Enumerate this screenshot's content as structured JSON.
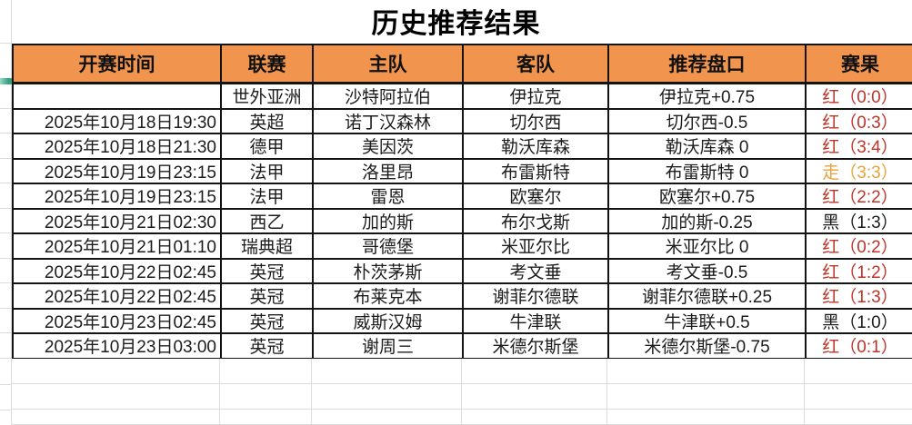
{
  "title": "历史推荐结果",
  "table": {
    "columns": [
      {
        "key": "time",
        "label": "开赛时间"
      },
      {
        "key": "league",
        "label": "联赛"
      },
      {
        "key": "home",
        "label": "主队"
      },
      {
        "key": "away",
        "label": "客队"
      },
      {
        "key": "handicap",
        "label": "推荐盘口"
      },
      {
        "key": "result",
        "label": "赛果"
      }
    ],
    "rows": [
      {
        "time": "",
        "league": "世外亚洲",
        "home": "沙特阿拉伯",
        "away": "伊拉克",
        "handicap": "伊拉克+0.75",
        "result": "红（0:0）",
        "result_type": "red"
      },
      {
        "time": "2025年10月18日19:30",
        "league": "英超",
        "home": "诺丁汉森林",
        "away": "切尔西",
        "handicap": "切尔西-0.5",
        "result": "红（0:3）",
        "result_type": "red"
      },
      {
        "time": "2025年10月18日21:30",
        "league": "德甲",
        "home": "美因茨",
        "away": "勒沃库森",
        "handicap": "勒沃库森 0",
        "result": "红（3:4）",
        "result_type": "red"
      },
      {
        "time": "2025年10月19日23:15",
        "league": "法甲",
        "home": "洛里昂",
        "away": "布雷斯特",
        "handicap": "布雷斯特 0",
        "result": "走（3:3）",
        "result_type": "push"
      },
      {
        "time": "2025年10月19日23:15",
        "league": "法甲",
        "home": "雷恩",
        "away": "欧塞尔",
        "handicap": "欧塞尔+0.75",
        "result": "红（2:2）",
        "result_type": "red"
      },
      {
        "time": "2025年10月21日02:30",
        "league": "西乙",
        "home": "加的斯",
        "away": "布尔戈斯",
        "handicap": "加的斯-0.25",
        "result": "黑（1:3）",
        "result_type": "black"
      },
      {
        "time": "2025年10月21日01:10",
        "league": "瑞典超",
        "home": "哥德堡",
        "away": "米亚尔比",
        "handicap": "米亚尔比 0",
        "result": "红（0:2）",
        "result_type": "red"
      },
      {
        "time": "2025年10月22日02:45",
        "league": "英冠",
        "home": "朴茨茅斯",
        "away": "考文垂",
        "handicap": "考文垂-0.5",
        "result": "红（1:2）",
        "result_type": "red"
      },
      {
        "time": "2025年10月22日02:45",
        "league": "英冠",
        "home": "布莱克本",
        "away": "谢菲尔德联",
        "handicap": "谢菲尔德联+0.25",
        "result": "红（1:3）",
        "result_type": "red"
      },
      {
        "time": "2025年10月23日02:45",
        "league": "英冠",
        "home": "威斯汉姆",
        "away": "牛津联",
        "handicap": "牛津联+0.5",
        "result": "黑（1:0）",
        "result_type": "black"
      },
      {
        "time": "2025年10月23日03:00",
        "league": "英冠",
        "home": "谢周三",
        "away": "米德尔斯堡",
        "handicap": "米德尔斯堡-0.75",
        "result": "红（0:1）",
        "result_type": "red"
      }
    ]
  },
  "colors": {
    "header_bg": "#F0944E",
    "border": "#141414",
    "grid_faint": "#dcdcdc",
    "result_red": "#BE3428",
    "result_push": "#E7A33D",
    "result_black": "#1C1C1C",
    "selection_green": "#35A181"
  }
}
